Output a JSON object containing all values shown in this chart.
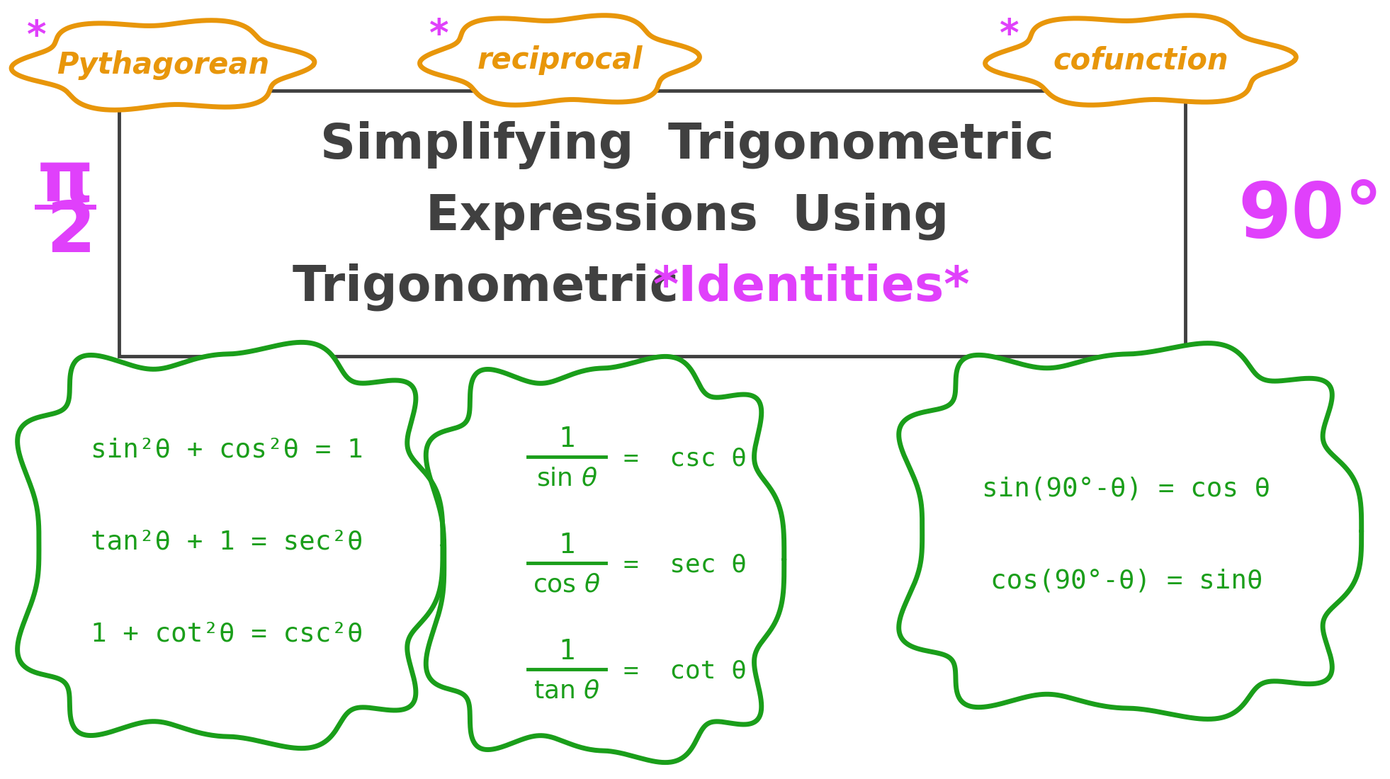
{
  "bg_color": "#ffffff",
  "orange_color": "#E8960A",
  "magenta_color": "#e040fb",
  "green_color": "#1a9e1a",
  "dark_color": "#404040",
  "title_line1": "Simplifying  Trigonometric",
  "title_line2": "Expressions  Using",
  "title_line3_dark": "Trigonometric  ",
  "title_line3_magenta": "*Identities*",
  "pi_top": "π",
  "pi_bottom": "2",
  "ninety_deg": "90°",
  "cloud_pythagorean_label": "Pythagorean",
  "cloud_reciprocal_label": "reciprocal",
  "cloud_cofunction_label": "cofunction",
  "pyth_eq1": "sin²θ + cos²θ = 1",
  "pyth_eq2": "tan²θ + 1 = sec²θ",
  "pyth_eq3": "1 + cot²θ = csc²θ",
  "cofunc_eq1": "sin(90°-θ) = cos θ",
  "cofunc_eq2": "cos(90°-θ) = sinθ"
}
